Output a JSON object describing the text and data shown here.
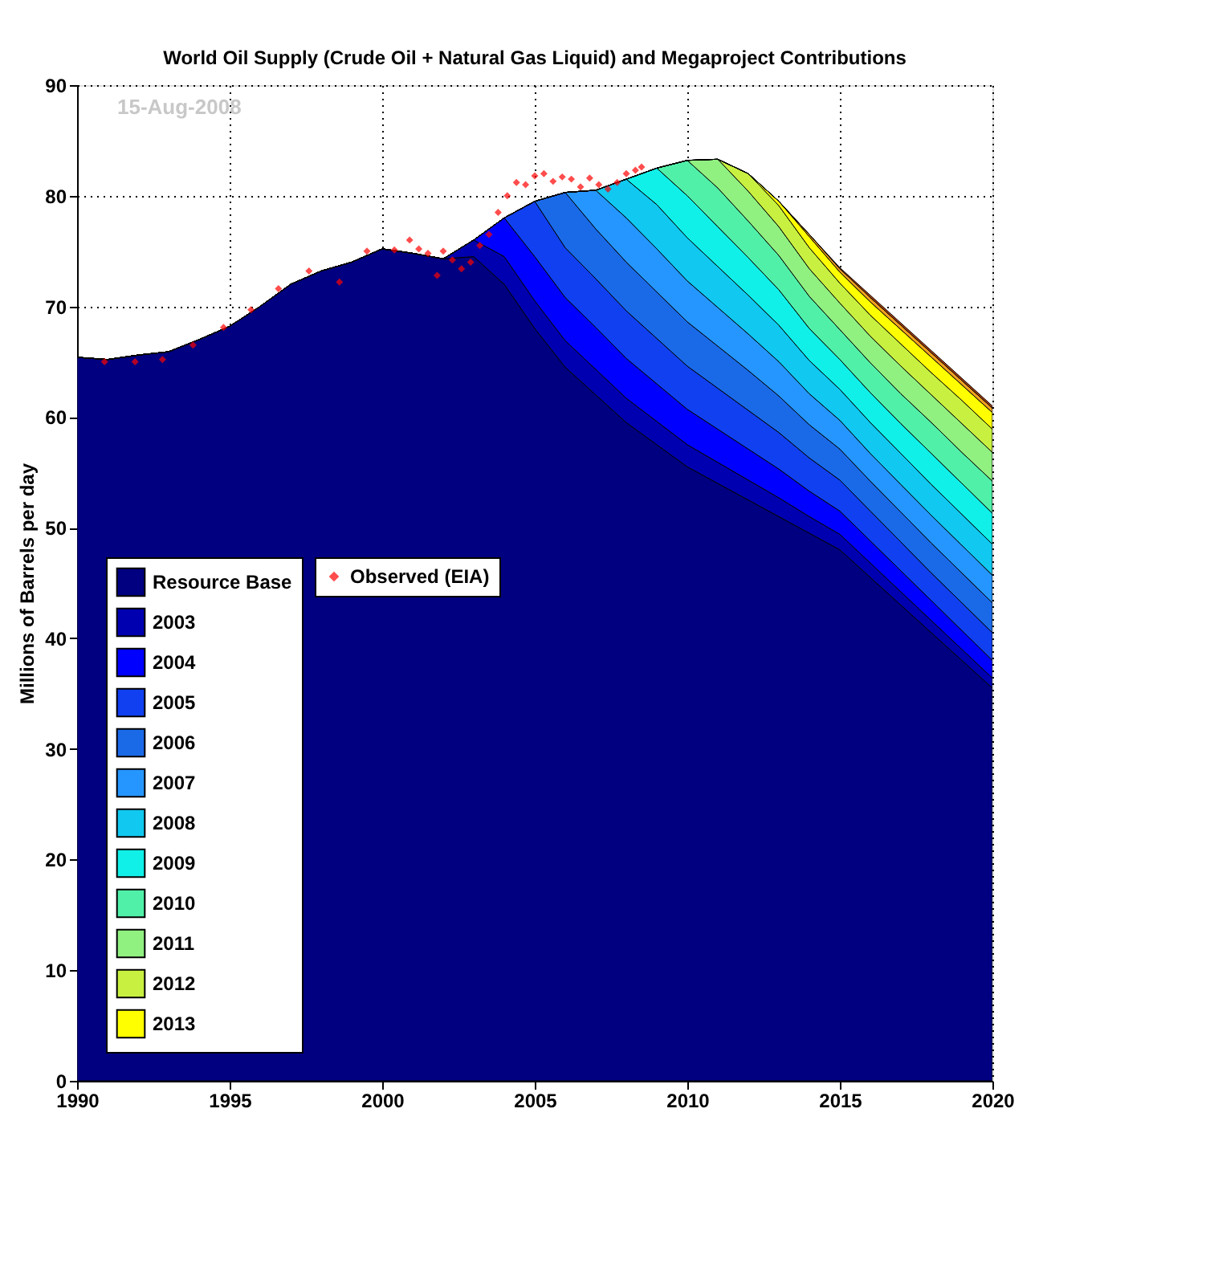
{
  "chart_data": {
    "type": "area",
    "stacked": true,
    "title": "World Oil Supply (Crude Oil + Natural Gas Liquid) and Megaproject Contributions",
    "ylabel": "Millions of Barrels per day",
    "annotations": [
      "15-Aug-2008"
    ],
    "xlim": [
      1990,
      2020
    ],
    "xticks": [
      1990,
      1995,
      2000,
      2005,
      2010,
      2015,
      2020
    ],
    "ylim": [
      0,
      90
    ],
    "yticks": [
      0,
      10,
      20,
      30,
      40,
      50,
      60,
      70,
      80,
      90
    ],
    "grid": true,
    "legend": "bottom left",
    "x": [
      1990,
      1991,
      1992,
      1993,
      1994,
      1995,
      1996,
      1997,
      1998,
      1999,
      2000,
      2001,
      2002,
      2003,
      2004,
      2005,
      2006,
      2007,
      2008,
      2009,
      2010,
      2011,
      2012,
      2013,
      2014,
      2015,
      2016,
      2017,
      2018,
      2019,
      2020
    ],
    "series": [
      {
        "name": "Resource Base",
        "color": "#000080",
        "values": [
          65.4,
          65.2,
          65.6,
          65.9,
          67,
          68.2,
          70,
          72,
          73.2,
          74,
          75.2,
          74.8,
          74.3,
          74.5,
          72,
          68,
          64.5,
          62,
          59.5,
          57.5,
          55.5,
          54,
          52.5,
          51,
          49.5,
          48,
          45.5,
          43,
          40.5,
          38,
          35.5
        ]
      },
      {
        "name": "2003",
        "color": "#0000b0",
        "values": [
          0,
          0,
          0,
          0,
          0,
          0,
          0,
          0,
          0,
          0,
          0,
          0,
          0,
          1.5,
          2.5,
          2.5,
          2.4,
          2.3,
          2.2,
          2.1,
          2.0,
          1.9,
          1.8,
          1.7,
          1.5,
          1.4,
          1.3,
          1.2,
          1.1,
          1.0,
          0.9
        ]
      },
      {
        "name": "2004",
        "color": "#0000ff",
        "values": [
          0,
          0,
          0,
          0,
          0,
          0,
          0,
          0,
          0,
          0,
          0,
          0,
          0,
          0,
          3.5,
          4,
          3.9,
          3.8,
          3.6,
          3.4,
          3.2,
          3.0,
          2.8,
          2.6,
          2.3,
          2.1,
          2.0,
          1.9,
          1.8,
          1.7,
          1.6
        ]
      },
      {
        "name": "2005",
        "color": "#1040f0",
        "values": [
          0,
          0,
          0,
          0,
          0,
          0,
          0,
          0,
          0,
          0,
          0,
          0,
          0,
          0,
          0,
          5,
          4.5,
          4.4,
          4.3,
          4.1,
          3.9,
          3.7,
          3.5,
          3.3,
          3.0,
          2.8,
          2.7,
          2.6,
          2.5,
          2.5,
          2.5
        ]
      },
      {
        "name": "2006",
        "color": "#1a6ae8",
        "values": [
          0,
          0,
          0,
          0,
          0,
          0,
          0,
          0,
          0,
          0,
          0,
          0,
          0,
          0,
          0,
          0,
          5,
          4.5,
          4.4,
          4.2,
          4.0,
          3.8,
          3.6,
          3.3,
          3.0,
          2.8,
          2.7,
          2.7,
          2.7,
          2.7,
          2.7
        ]
      },
      {
        "name": "2007",
        "color": "#2596ff",
        "values": [
          0,
          0,
          0,
          0,
          0,
          0,
          0,
          0,
          0,
          0,
          0,
          0,
          0,
          0,
          0,
          0,
          0,
          3.5,
          4.0,
          3.9,
          3.7,
          3.5,
          3.3,
          3.1,
          2.8,
          2.6,
          2.5,
          2.5,
          2.5,
          2.5,
          2.5
        ]
      },
      {
        "name": "2008",
        "color": "#10c8f0",
        "values": [
          0,
          0,
          0,
          0,
          0,
          0,
          0,
          0,
          0,
          0,
          0,
          0,
          0,
          0,
          0,
          0,
          0,
          0,
          3.5,
          4.0,
          3.9,
          3.7,
          3.5,
          3.3,
          3.0,
          2.8,
          2.8,
          2.8,
          2.8,
          2.8,
          2.8
        ]
      },
      {
        "name": "2009",
        "color": "#10f0e8",
        "values": [
          0,
          0,
          0,
          0,
          0,
          0,
          0,
          0,
          0,
          0,
          0,
          0,
          0,
          0,
          0,
          0,
          0,
          0,
          0,
          3.3,
          3.8,
          3.6,
          3.4,
          3.2,
          2.9,
          2.7,
          2.7,
          2.7,
          2.8,
          2.8,
          2.8
        ]
      },
      {
        "name": "2010",
        "color": "#50f0a8",
        "values": [
          0,
          0,
          0,
          0,
          0,
          0,
          0,
          0,
          0,
          0,
          0,
          0,
          0,
          0,
          0,
          0,
          0,
          0,
          0,
          0,
          3.2,
          3.5,
          3.3,
          3.1,
          2.9,
          2.7,
          2.7,
          2.7,
          2.8,
          2.8,
          2.9
        ]
      },
      {
        "name": "2011",
        "color": "#90f080",
        "values": [
          0,
          0,
          0,
          0,
          0,
          0,
          0,
          0,
          0,
          0,
          0,
          0,
          0,
          0,
          0,
          0,
          0,
          0,
          0,
          0,
          0,
          2.6,
          2.7,
          2.6,
          2.5,
          2.4,
          2.4,
          2.5,
          2.5,
          2.6,
          2.6
        ]
      },
      {
        "name": "2012",
        "color": "#c8f040",
        "values": [
          0,
          0,
          0,
          0,
          0,
          0,
          0,
          0,
          0,
          0,
          0,
          0,
          0,
          0,
          0,
          0,
          0,
          0,
          0,
          0,
          0,
          0,
          1.6,
          1.9,
          1.9,
          1.8,
          1.9,
          2.0,
          2.0,
          2.1,
          2.1
        ]
      },
      {
        "name": "2013",
        "color": "#ffff00",
        "values": [
          0,
          0,
          0,
          0,
          0,
          0,
          0,
          0,
          0,
          0,
          0,
          0,
          0,
          0,
          0,
          0,
          0,
          0,
          0,
          0,
          0,
          0,
          0,
          0.4,
          1.0,
          1.0,
          1.2,
          1.3,
          1.4,
          1.4,
          1.5
        ]
      },
      {
        "color": "#f0a020",
        "values": [
          0,
          0,
          0,
          0,
          0,
          0,
          0,
          0,
          0,
          0,
          0,
          0,
          0,
          0,
          0,
          0,
          0,
          0,
          0,
          0,
          0,
          0,
          0,
          0,
          0.2,
          0.3,
          0.4,
          0.4,
          0.4,
          0.4,
          0.4
        ]
      },
      {
        "color": "#b04010",
        "values": [
          0,
          0,
          0,
          0,
          0,
          0,
          0,
          0,
          0,
          0,
          0,
          0,
          0,
          0,
          0,
          0,
          0,
          0,
          0,
          0,
          0,
          0,
          0,
          0,
          0,
          0.1,
          0.2,
          0.2,
          0.2,
          0.2,
          0.2
        ]
      },
      {
        "name": "Observed (EIA)",
        "type": "scatter",
        "marker": "diamond",
        "color": "#ff0000",
        "x": [
          1990.9,
          1991.9,
          1992.8,
          1993.8,
          1994.8,
          1995.7,
          1996.6,
          1997.6,
          1998.6,
          1999.5,
          2000.4,
          2000.9,
          2001.2,
          2001.5,
          2001.8,
          2002.0,
          2002.3,
          2002.6,
          2002.9,
          2003.2,
          2003.5,
          2003.8,
          2004.1,
          2004.4,
          2004.7,
          2005.0,
          2005.3,
          2005.6,
          2005.9,
          2006.2,
          2006.5,
          2006.8,
          2007.1,
          2007.4,
          2007.7,
          2008.0,
          2008.3,
          2008.5
        ],
        "values": [
          65.0,
          65.0,
          65.2,
          66.5,
          68.1,
          69.7,
          71.6,
          73.2,
          72.2,
          75.0,
          75.1,
          76.0,
          75.2,
          74.8,
          72.8,
          75.0,
          74.2,
          73.4,
          74.0,
          75.5,
          76.5,
          78.5,
          80.0,
          81.2,
          81.0,
          81.8,
          82.0,
          81.3,
          81.7,
          81.5,
          80.8,
          81.6,
          81.0,
          80.6,
          81.2,
          82.0,
          82.3,
          82.6
        ]
      }
    ]
  }
}
